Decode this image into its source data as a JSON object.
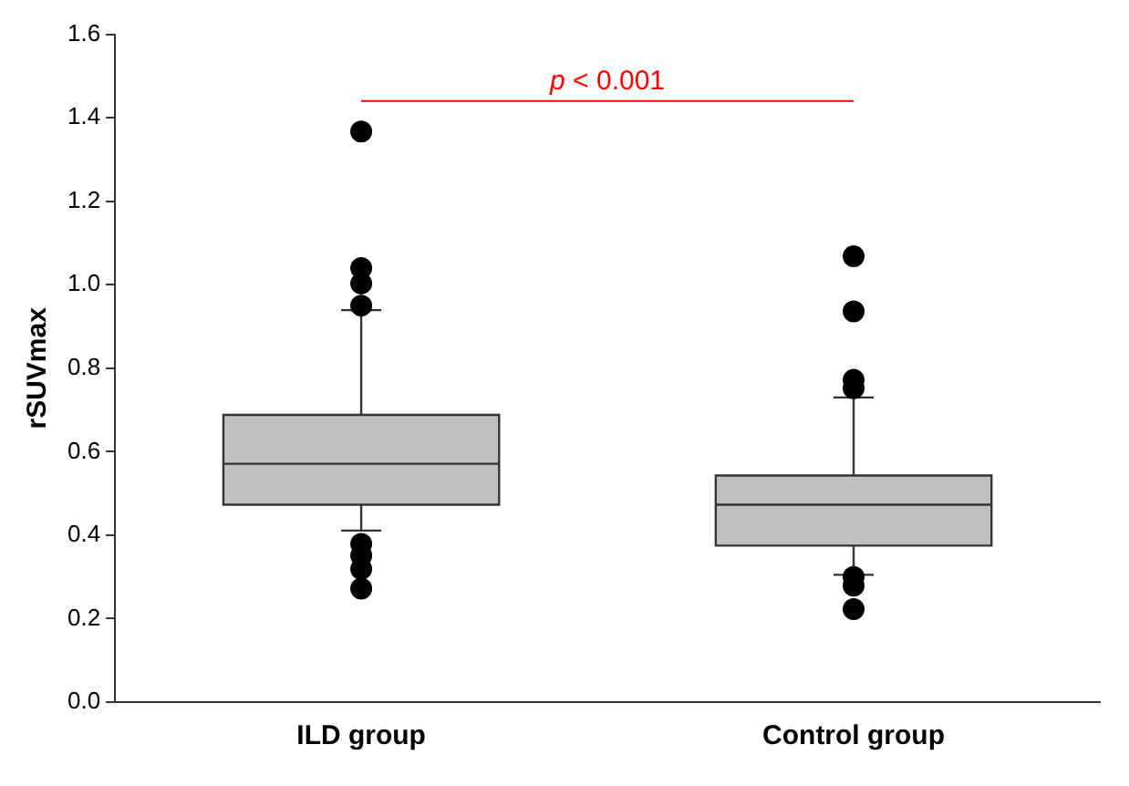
{
  "chart_data": {
    "type": "box",
    "ylabel": "rSUVmax",
    "categories": [
      "ILD group",
      "Control group"
    ],
    "color": "#c0c0c0",
    "boxes": [
      {
        "low": 0.411,
        "q1": 0.473,
        "median": 0.571,
        "q3": 0.688,
        "high": 0.939,
        "outliers": [
          1.367,
          1.04,
          1.003,
          0.95,
          0.379,
          0.351,
          0.319,
          0.272
        ]
      },
      {
        "low": 0.305,
        "q1": 0.375,
        "median": 0.473,
        "q3": 0.543,
        "high": 0.73,
        "outliers": [
          1.068,
          0.936,
          0.772,
          0.752,
          0.3,
          0.279,
          0.223
        ]
      }
    ],
    "ylim": [
      0,
      1.6
    ],
    "yticks": [
      {
        "value": 0,
        "label": "0.0"
      },
      0.2,
      0.4,
      0.6,
      0.8,
      {
        "value": 1,
        "label": "1.0"
      },
      1.2,
      1.4,
      1.6
    ],
    "annotations": [
      "p < 0.001"
    ],
    "grid": false,
    "legend": false
  }
}
